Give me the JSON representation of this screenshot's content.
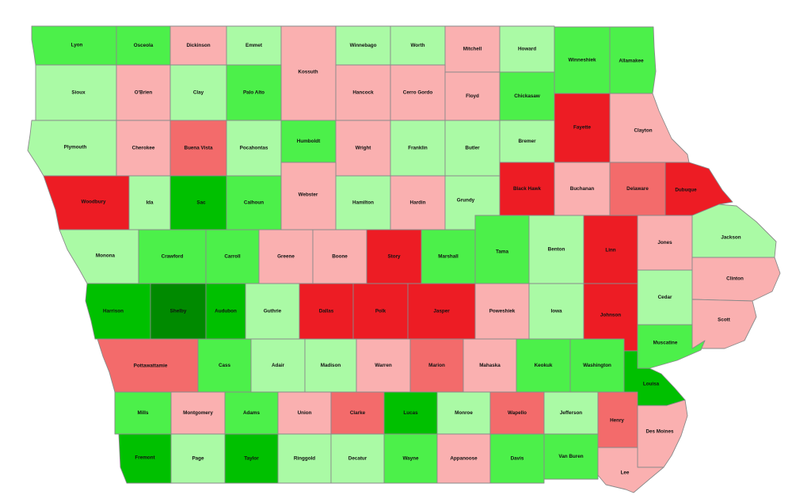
{
  "palette": {
    "dark-red": "#ED1C24",
    "medium-red": "#F36B6B",
    "light-red": "#FAB0B0",
    "light-green": "#AAFAA5",
    "medium-green": "#4CF04A",
    "dark-green": "#00C000",
    "darkest-green": "#008A00"
  },
  "counties": [
    {
      "id": "lyon",
      "label": "Lyon",
      "level": "medium-green"
    },
    {
      "id": "osceola",
      "label": "Osceola",
      "level": "medium-green"
    },
    {
      "id": "dickinson",
      "label": "Dickinson",
      "level": "light-red"
    },
    {
      "id": "emmet",
      "label": "Emmet",
      "level": "light-green"
    },
    {
      "id": "kossuth",
      "label": "Kossuth",
      "level": "light-red"
    },
    {
      "id": "winnebago",
      "label": "Winnebago",
      "level": "light-green"
    },
    {
      "id": "worth",
      "label": "Worth",
      "level": "light-green"
    },
    {
      "id": "mitchell",
      "label": "Mitchell",
      "level": "light-red"
    },
    {
      "id": "howard",
      "label": "Howard",
      "level": "light-green"
    },
    {
      "id": "winneshiek",
      "label": "Winneshiek",
      "level": "medium-green"
    },
    {
      "id": "allamakee",
      "label": "Allamakee",
      "level": "medium-green"
    },
    {
      "id": "sioux",
      "label": "Sioux",
      "level": "light-green"
    },
    {
      "id": "obrien",
      "label": "O'Brien",
      "level": "light-red"
    },
    {
      "id": "clay",
      "label": "Clay",
      "level": "light-green"
    },
    {
      "id": "paloalto",
      "label": "Palo Alto",
      "level": "medium-green"
    },
    {
      "id": "hancock",
      "label": "Hancock",
      "level": "light-red"
    },
    {
      "id": "cerrogordo",
      "label": "Cerro Gordo",
      "level": "light-red"
    },
    {
      "id": "floyd",
      "label": "Floyd",
      "level": "light-red"
    },
    {
      "id": "chickasaw",
      "label": "Chickasaw",
      "level": "medium-green"
    },
    {
      "id": "fayette",
      "label": "Fayette",
      "level": "dark-red"
    },
    {
      "id": "clayton",
      "label": "Clayton",
      "level": "light-red"
    },
    {
      "id": "plymouth",
      "label": "Plymouth",
      "level": "light-green"
    },
    {
      "id": "cherokee",
      "label": "Cherokee",
      "level": "light-red"
    },
    {
      "id": "buenavista",
      "label": "Buena Vista",
      "level": "medium-red"
    },
    {
      "id": "pocahontas",
      "label": "Pocahontas",
      "level": "light-green"
    },
    {
      "id": "humboldt",
      "label": "Humboldt",
      "level": "medium-green"
    },
    {
      "id": "wright",
      "label": "Wright",
      "level": "light-red"
    },
    {
      "id": "franklin",
      "label": "Franklin",
      "level": "light-green"
    },
    {
      "id": "butler",
      "label": "Butler",
      "level": "light-green"
    },
    {
      "id": "bremer",
      "label": "Bremer",
      "level": "light-green"
    },
    {
      "id": "woodbury",
      "label": "Woodbury",
      "level": "dark-red"
    },
    {
      "id": "ida",
      "label": "Ida",
      "level": "light-green"
    },
    {
      "id": "sac",
      "label": "Sac",
      "level": "dark-green"
    },
    {
      "id": "calhoun",
      "label": "Calhoun",
      "level": "medium-green"
    },
    {
      "id": "webster",
      "label": "Webster",
      "level": "light-red"
    },
    {
      "id": "hamilton",
      "label": "Hamilton",
      "level": "light-green"
    },
    {
      "id": "hardin",
      "label": "Hardin",
      "level": "light-red"
    },
    {
      "id": "grundy",
      "label": "Grundy",
      "level": "light-green"
    },
    {
      "id": "blackhawk",
      "label": "Black Hawk",
      "level": "dark-red"
    },
    {
      "id": "buchanan",
      "label": "Buchanan",
      "level": "light-red"
    },
    {
      "id": "delaware",
      "label": "Delaware",
      "level": "medium-red"
    },
    {
      "id": "dubuque",
      "label": "Dubuque",
      "level": "dark-red"
    },
    {
      "id": "monona",
      "label": "Monona",
      "level": "light-green"
    },
    {
      "id": "crawford",
      "label": "Crawford",
      "level": "medium-green"
    },
    {
      "id": "carroll",
      "label": "Carroll",
      "level": "medium-green"
    },
    {
      "id": "greene",
      "label": "Greene",
      "level": "light-red"
    },
    {
      "id": "boone",
      "label": "Boone",
      "level": "light-red"
    },
    {
      "id": "story",
      "label": "Story",
      "level": "dark-red"
    },
    {
      "id": "marshall",
      "label": "Marshall",
      "level": "medium-green"
    },
    {
      "id": "tama",
      "label": "Tama",
      "level": "medium-green"
    },
    {
      "id": "benton",
      "label": "Benton",
      "level": "light-green"
    },
    {
      "id": "linn",
      "label": "Linn",
      "level": "dark-red"
    },
    {
      "id": "jones",
      "label": "Jones",
      "level": "light-red"
    },
    {
      "id": "jackson",
      "label": "Jackson",
      "level": "light-green"
    },
    {
      "id": "harrison",
      "label": "Harrison",
      "level": "dark-green"
    },
    {
      "id": "shelby",
      "label": "Shelby",
      "level": "darkest-green"
    },
    {
      "id": "audubon",
      "label": "Audubon",
      "level": "dark-green"
    },
    {
      "id": "guthrie",
      "label": "Guthrie",
      "level": "light-green"
    },
    {
      "id": "dallas",
      "label": "Dallas",
      "level": "dark-red"
    },
    {
      "id": "polk",
      "label": "Polk",
      "level": "dark-red"
    },
    {
      "id": "jasper",
      "label": "Jasper",
      "level": "dark-red"
    },
    {
      "id": "poweshiek",
      "label": "Poweshiek",
      "level": "light-red"
    },
    {
      "id": "iowa",
      "label": "Iowa",
      "level": "light-green"
    },
    {
      "id": "johnson",
      "label": "Johnson",
      "level": "dark-red"
    },
    {
      "id": "cedar",
      "label": "Cedar",
      "level": "light-green"
    },
    {
      "id": "clinton",
      "label": "Clinton",
      "level": "light-red"
    },
    {
      "id": "scott",
      "label": "Scott",
      "level": "light-red"
    },
    {
      "id": "muscatine",
      "label": "Muscatine",
      "level": "medium-green"
    },
    {
      "id": "pottawattamie",
      "label": "Pottawattamie",
      "level": "medium-red"
    },
    {
      "id": "cass",
      "label": "Cass",
      "level": "medium-green"
    },
    {
      "id": "adair",
      "label": "Adair",
      "level": "light-green"
    },
    {
      "id": "madison",
      "label": "Madison",
      "level": "light-green"
    },
    {
      "id": "warren",
      "label": "Warren",
      "level": "light-red"
    },
    {
      "id": "marion",
      "label": "Marion",
      "level": "medium-red"
    },
    {
      "id": "mahaska",
      "label": "Mahaska",
      "level": "light-red"
    },
    {
      "id": "keokuk",
      "label": "Keokuk",
      "level": "medium-green"
    },
    {
      "id": "washington",
      "label": "Washington",
      "level": "medium-green"
    },
    {
      "id": "louisa",
      "label": "Louisa",
      "level": "dark-green"
    },
    {
      "id": "mills",
      "label": "Mills",
      "level": "medium-green"
    },
    {
      "id": "montgomery",
      "label": "Montgomery",
      "level": "light-red"
    },
    {
      "id": "adams",
      "label": "Adams",
      "level": "medium-green"
    },
    {
      "id": "union",
      "label": "Union",
      "level": "light-red"
    },
    {
      "id": "clarke",
      "label": "Clarke",
      "level": "medium-red"
    },
    {
      "id": "lucas",
      "label": "Lucas",
      "level": "dark-green"
    },
    {
      "id": "monroe",
      "label": "Monroe",
      "level": "light-green"
    },
    {
      "id": "wapello",
      "label": "Wapello",
      "level": "medium-red"
    },
    {
      "id": "jefferson",
      "label": "Jefferson",
      "level": "light-green"
    },
    {
      "id": "henry",
      "label": "Henry",
      "level": "medium-red"
    },
    {
      "id": "desmoines",
      "label": "Des Moines",
      "level": "light-red"
    },
    {
      "id": "fremont",
      "label": "Fremont",
      "level": "dark-green"
    },
    {
      "id": "page",
      "label": "Page",
      "level": "light-green"
    },
    {
      "id": "taylor",
      "label": "Taylor",
      "level": "dark-green"
    },
    {
      "id": "ringgold",
      "label": "Ringgold",
      "level": "light-green"
    },
    {
      "id": "decatur",
      "label": "Decatur",
      "level": "light-green"
    },
    {
      "id": "wayne",
      "label": "Wayne",
      "level": "medium-green"
    },
    {
      "id": "appanoose",
      "label": "Appanoose",
      "level": "light-red"
    },
    {
      "id": "davis",
      "label": "Davis",
      "level": "medium-green"
    },
    {
      "id": "vanburen",
      "label": "Van Buren",
      "level": "medium-green"
    },
    {
      "id": "lee",
      "label": "Lee",
      "level": "light-red"
    }
  ]
}
